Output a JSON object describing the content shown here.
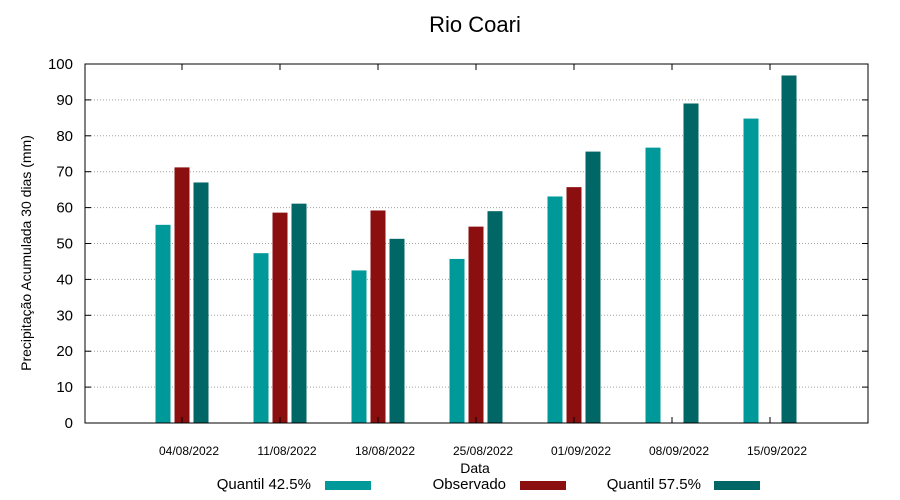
{
  "chart_data": {
    "type": "bar",
    "title": "Rio Coari",
    "xlabel": "Data",
    "ylabel": "Precipitação Acumulada 30 dias (mm)",
    "ylim": [
      0,
      100
    ],
    "yticks": [
      0,
      10,
      20,
      30,
      40,
      50,
      60,
      70,
      80,
      90,
      100
    ],
    "grid": true,
    "legend_position": "bottom",
    "categories": [
      "04/08/2022",
      "11/08/2022",
      "18/08/2022",
      "25/08/2022",
      "01/09/2022",
      "08/09/2022",
      "15/09/2022"
    ],
    "series": [
      {
        "name": "Quantil 42.5%",
        "color": "#009999",
        "values": [
          55.2,
          47.3,
          42.5,
          45.7,
          63.1,
          76.7,
          84.8
        ]
      },
      {
        "name": "Observado",
        "color": "#8b0f0f",
        "values": [
          71.2,
          58.6,
          59.2,
          54.7,
          65.7,
          null,
          null
        ]
      },
      {
        "name": "Quantil 57.5%",
        "color": "#006666",
        "values": [
          67.0,
          61.1,
          51.3,
          59.0,
          75.6,
          89.0,
          96.8
        ]
      }
    ]
  }
}
